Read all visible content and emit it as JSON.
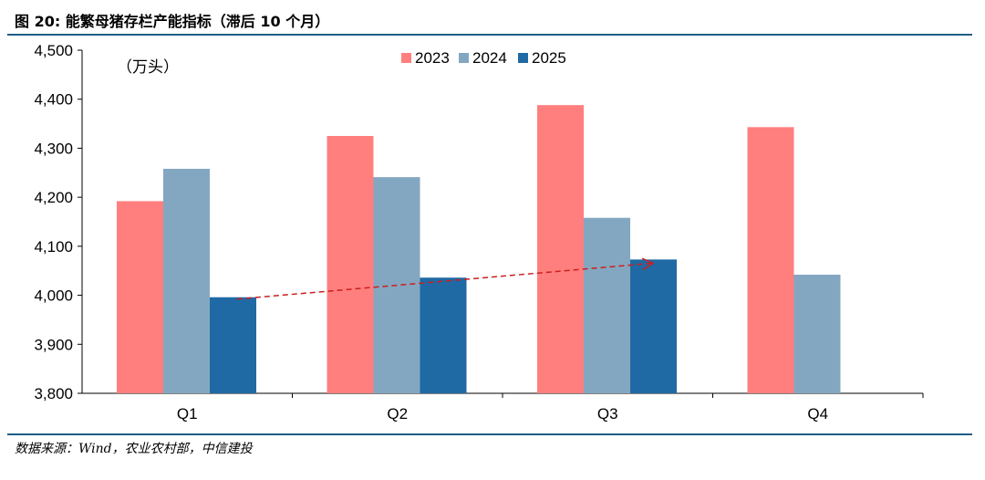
{
  "figure": {
    "title": "图 20: 能繁母猪存栏产能指标（滞后 10 个月）",
    "unit": "（万头）",
    "source": "数据来源：Wind，农业农村部，中信建投"
  },
  "colors": {
    "rule": "#1f5e86",
    "series_2023": "#ff7f7f",
    "series_2024": "#84a7c1",
    "series_2025": "#1f6aa5",
    "trend_arrow": "#cc1f1f"
  },
  "chart_data": {
    "type": "bar",
    "categories": [
      "Q1",
      "Q2",
      "Q3",
      "Q4"
    ],
    "series": [
      {
        "name": "2023",
        "values": [
          4192,
          4325,
          4388,
          4343
        ]
      },
      {
        "name": "2024",
        "values": [
          4258,
          4241,
          4158,
          4042
        ]
      },
      {
        "name": "2025",
        "values": [
          3996,
          4036,
          4073,
          null
        ]
      }
    ],
    "ylim": [
      3800,
      4500
    ],
    "yticks": [
      "3,800",
      "3,900",
      "4,000",
      "4,100",
      "4,200",
      "4,300",
      "4,400",
      "4,500"
    ],
    "ytick_values": [
      3800,
      3900,
      4000,
      4100,
      4200,
      4300,
      4400,
      4500
    ],
    "legend_position": "top-center",
    "grid": false,
    "annotations": [
      {
        "type": "dashed-arrow",
        "from": {
          "category": "Q1",
          "series": "2025"
        },
        "to": {
          "category": "Q3",
          "series": "2025"
        }
      }
    ]
  }
}
